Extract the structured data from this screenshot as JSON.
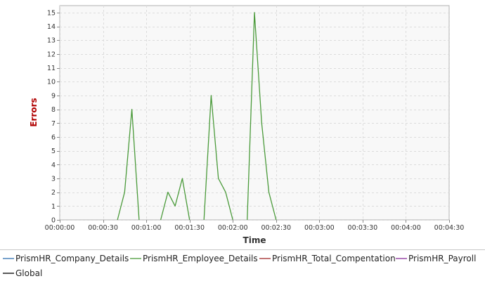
{
  "chart_data": {
    "type": "line",
    "title": "",
    "xlabel": "Time",
    "ylabel": "Errors",
    "ylabel_color": "#b00000",
    "xlim": [
      0,
      270
    ],
    "ylim": [
      0,
      15.5
    ],
    "x_ticks": [
      0,
      30,
      60,
      90,
      120,
      150,
      180,
      210,
      240,
      270
    ],
    "x_tick_labels": [
      "00:00:00",
      "00:00:30",
      "00:01:00",
      "00:01:30",
      "00:02:00",
      "00:02:30",
      "00:03:00",
      "00:03:30",
      "00:04:00",
      "00:04:30"
    ],
    "y_ticks": [
      0,
      1,
      2,
      3,
      4,
      5,
      6,
      7,
      8,
      9,
      10,
      11,
      12,
      13,
      14,
      15
    ],
    "y_tick_labels": [
      "0",
      "1",
      "2",
      "3",
      "4",
      "5",
      "6",
      "7",
      "8",
      "9",
      "10",
      "11",
      "12",
      "13",
      "14",
      "15"
    ],
    "grid": true,
    "plot_background": "#f8f8f8",
    "legend_position": "bottom",
    "series": [
      {
        "name": "PrismHR_Company_Details",
        "color": "#2f6fb0",
        "points": []
      },
      {
        "name": "PrismHR_Employee_Details",
        "color": "#4a9a3a",
        "points": [
          [
            40,
            0
          ],
          [
            45,
            2
          ],
          [
            50,
            8
          ],
          [
            55,
            0
          ],
          [
            60,
            null
          ],
          [
            70,
            0
          ],
          [
            75,
            2
          ],
          [
            80,
            1
          ],
          [
            85,
            3
          ],
          [
            90,
            0
          ],
          [
            95,
            null
          ],
          [
            100,
            0
          ],
          [
            105,
            9
          ],
          [
            110,
            3
          ],
          [
            115,
            2
          ],
          [
            120,
            0
          ],
          [
            125,
            null
          ],
          [
            130,
            0
          ],
          [
            135,
            15
          ],
          [
            140,
            7
          ],
          [
            145,
            2
          ],
          [
            150,
            0
          ]
        ]
      },
      {
        "name": "PrismHR_Total_Compentation",
        "color": "#a02828",
        "points": []
      },
      {
        "name": "PrismHR_Payroll",
        "color": "#8a2f9a",
        "points": []
      },
      {
        "name": "Global",
        "color": "#000000",
        "points": []
      }
    ]
  }
}
